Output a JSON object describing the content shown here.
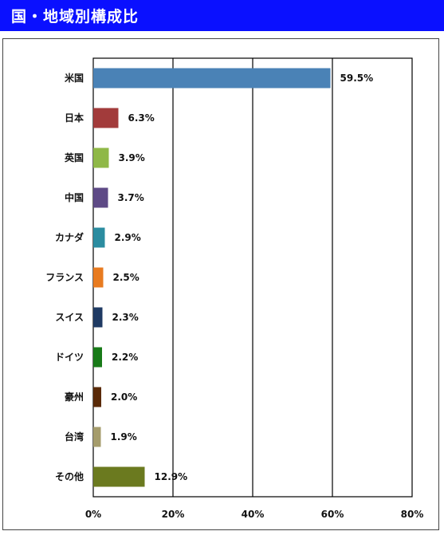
{
  "header": {
    "title": "国・地域別構成比"
  },
  "chart_data": {
    "type": "bar",
    "orientation": "horizontal",
    "title": "国・地域別構成比",
    "categories": [
      "米国",
      "日本",
      "英国",
      "中国",
      "カナダ",
      "フランス",
      "スイス",
      "ドイツ",
      "豪州",
      "台湾",
      "その他"
    ],
    "values": [
      59.5,
      6.3,
      3.9,
      3.7,
      2.9,
      2.5,
      2.3,
      2.2,
      2.0,
      1.9,
      12.9
    ],
    "value_labels": [
      "59.5%",
      "6.3%",
      "3.9%",
      "3.7%",
      "2.9%",
      "2.5%",
      "2.3%",
      "2.2%",
      "2.0%",
      "1.9%",
      "12.9%"
    ],
    "colors": [
      "#4a82b6",
      "#a23b3b",
      "#8fb847",
      "#5e4a86",
      "#2b8ca0",
      "#e87b20",
      "#1f3a63",
      "#187a18",
      "#5a2a08",
      "#a59c6c",
      "#6b7a1f"
    ],
    "xlim": [
      0,
      80
    ],
    "xticks": [
      "0%",
      "20%",
      "40%",
      "60%",
      "80%"
    ],
    "grid": true
  }
}
